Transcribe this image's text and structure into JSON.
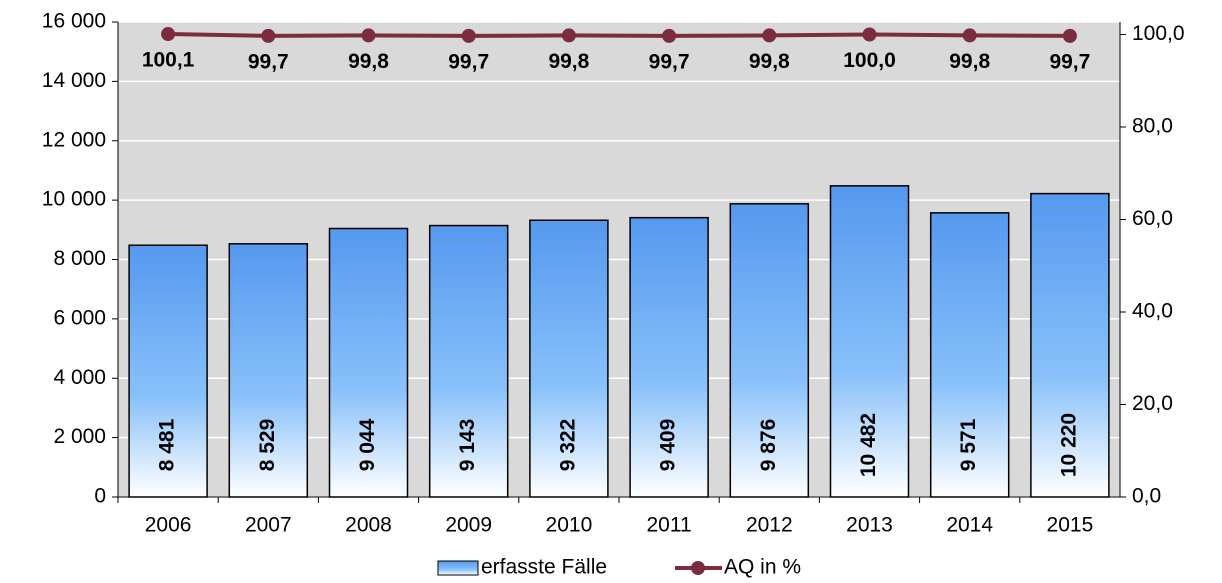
{
  "chart_data": {
    "type": "bar",
    "categories": [
      "2006",
      "2007",
      "2008",
      "2009",
      "2010",
      "2011",
      "2012",
      "2013",
      "2014",
      "2015"
    ],
    "series": [
      {
        "name": "erfasste Fälle",
        "type": "bar",
        "color": "#5599ee",
        "axis": "y",
        "values": [
          8481,
          8529,
          9044,
          9143,
          9322,
          9409,
          9876,
          10482,
          9571,
          10220
        ],
        "value_labels": [
          "8 481",
          "8 529",
          "9 044",
          "9 143",
          "9 322",
          "9 409",
          "9 876",
          "10 482",
          "9 571",
          "10 220"
        ]
      },
      {
        "name": "AQ in %",
        "type": "line",
        "color": "#7b2c3f",
        "axis": "y2",
        "values": [
          100.1,
          99.7,
          99.8,
          99.7,
          99.8,
          99.7,
          99.8,
          100.0,
          99.8,
          99.7
        ],
        "value_labels": [
          "100,1",
          "99,7",
          "99,8",
          "99,7",
          "99,8",
          "99,7",
          "99,8",
          "100,0",
          "99,8",
          "99,7"
        ]
      }
    ],
    "ylim": [
      0,
      16000
    ],
    "yticks": [
      0,
      {
        "value": 2000,
        "label": "2 000"
      },
      {
        "value": 4000,
        "label": "4 000"
      },
      {
        "value": 6000,
        "label": "6 000"
      },
      {
        "value": 8000,
        "label": "8 000"
      },
      {
        "value": 10000,
        "label": "10 000"
      },
      {
        "value": 12000,
        "label": "12 000"
      },
      {
        "value": 14000,
        "label": "14 000"
      },
      {
        "value": 16000,
        "label": "16 000"
      }
    ],
    "y2lim": [
      0,
      102.7
    ],
    "y2ticks": [
      {
        "value": 0,
        "label": "0,0"
      },
      {
        "value": 20,
        "label": "20,0"
      },
      {
        "value": 40,
        "label": "40,0"
      },
      {
        "value": 60,
        "label": "60,0"
      },
      {
        "value": 80,
        "label": "80,0"
      },
      {
        "value": 100,
        "label": "100,0"
      }
    ],
    "grid": true,
    "legend": "bottom"
  }
}
